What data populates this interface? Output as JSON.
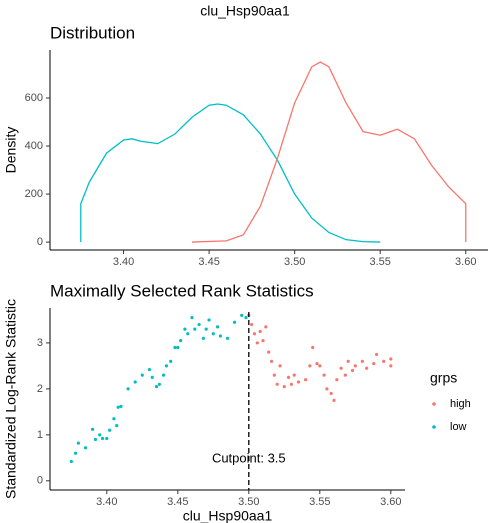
{
  "title": "clu_Hsp90aa1",
  "chart_data": [
    {
      "type": "line",
      "title": "Distribution",
      "ylabel": "Density",
      "xlim": [
        3.357,
        3.613
      ],
      "ylim": [
        -33,
        800
      ],
      "xticks": [
        {
          "value": 3.4,
          "label": "3.40"
        },
        {
          "value": 3.45,
          "label": "3.45"
        },
        {
          "value": 3.5,
          "label": "3.50"
        },
        {
          "value": 3.55,
          "label": "3.55"
        },
        {
          "value": 3.6,
          "label": "3.60"
        }
      ],
      "yticks": [
        0,
        200,
        400,
        600
      ],
      "series": [
        {
          "name": "low",
          "color": "#00BFC4",
          "x": [
            3.375,
            3.375,
            3.38,
            3.39,
            3.4,
            3.405,
            3.41,
            3.42,
            3.43,
            3.44,
            3.45,
            3.455,
            3.46,
            3.47,
            3.48,
            3.49,
            3.5,
            3.51,
            3.52,
            3.53,
            3.54,
            3.55
          ],
          "values": [
            0,
            160,
            250,
            370,
            425,
            430,
            420,
            410,
            450,
            520,
            570,
            575,
            570,
            530,
            450,
            340,
            200,
            100,
            40,
            10,
            2,
            0
          ]
        },
        {
          "name": "high",
          "color": "#F8766D",
          "x": [
            3.44,
            3.46,
            3.47,
            3.48,
            3.49,
            3.5,
            3.51,
            3.515,
            3.52,
            3.53,
            3.54,
            3.55,
            3.56,
            3.57,
            3.58,
            3.59,
            3.6,
            3.6
          ],
          "values": [
            0,
            5,
            30,
            150,
            350,
            580,
            730,
            750,
            730,
            580,
            460,
            445,
            470,
            430,
            320,
            230,
            160,
            0
          ]
        }
      ]
    },
    {
      "type": "scatter",
      "title": "Maximally Selected Rank Statistics",
      "xlabel": "clu_Hsp90aa1",
      "ylabel": "Standardized Log-Rank Statistic",
      "xlim": [
        3.36,
        3.61
      ],
      "ylim": [
        -0.2,
        3.76
      ],
      "xticks": [
        {
          "value": 3.4,
          "label": "3.40"
        },
        {
          "value": 3.45,
          "label": "3.45"
        },
        {
          "value": 3.5,
          "label": "3.50"
        },
        {
          "value": 3.55,
          "label": "3.55"
        },
        {
          "value": 3.6,
          "label": "3.60"
        }
      ],
      "yticks": [
        0,
        1,
        2,
        3
      ],
      "cutpoint": 3.5,
      "annotation": "Cutpoint: 3.5",
      "legend": true,
      "legend_title": "grps",
      "series": [
        {
          "name": "high",
          "color": "#F8766D",
          "x": [
            3.5,
            3.502,
            3.504,
            3.506,
            3.508,
            3.51,
            3.512,
            3.514,
            3.516,
            3.518,
            3.52,
            3.522,
            3.525,
            3.528,
            3.53,
            3.532,
            3.535,
            3.54,
            3.543,
            3.545,
            3.548,
            3.55,
            3.553,
            3.555,
            3.558,
            3.56,
            3.562,
            3.565,
            3.568,
            3.57,
            3.573,
            3.575,
            3.58,
            3.583,
            3.588,
            3.59,
            3.595,
            3.6,
            3.6
          ],
          "values": [
            3.6,
            3.4,
            3.2,
            3.0,
            3.25,
            3.05,
            3.35,
            2.8,
            2.6,
            2.3,
            2.1,
            2.5,
            2.05,
            2.25,
            2.1,
            2.3,
            2.15,
            2.2,
            2.5,
            2.9,
            2.55,
            2.5,
            2.3,
            2.0,
            1.9,
            1.75,
            2.2,
            2.45,
            2.3,
            2.6,
            2.4,
            2.5,
            2.6,
            2.45,
            2.55,
            2.75,
            2.6,
            2.5,
            2.65
          ]
        },
        {
          "name": "low",
          "color": "#00BFC4",
          "x": [
            3.375,
            3.378,
            3.38,
            3.385,
            3.39,
            3.392,
            3.395,
            3.397,
            3.4,
            3.402,
            3.405,
            3.407,
            3.408,
            3.41,
            3.415,
            3.42,
            3.425,
            3.43,
            3.432,
            3.435,
            3.437,
            3.44,
            3.442,
            3.445,
            3.448,
            3.45,
            3.452,
            3.455,
            3.457,
            3.46,
            3.462,
            3.465,
            3.468,
            3.47,
            3.472,
            3.475,
            3.478,
            3.48,
            3.485,
            3.49,
            3.495,
            3.498
          ],
          "values": [
            0.42,
            0.6,
            0.82,
            0.72,
            1.12,
            0.9,
            1.0,
            0.92,
            0.92,
            1.1,
            1.35,
            1.2,
            1.6,
            1.62,
            2.0,
            2.15,
            2.3,
            2.42,
            2.25,
            2.05,
            2.1,
            2.3,
            2.5,
            2.6,
            2.9,
            2.9,
            3.05,
            3.3,
            3.2,
            3.55,
            3.3,
            3.4,
            3.1,
            3.3,
            3.5,
            3.2,
            3.35,
            3.15,
            3.1,
            3.45,
            3.6,
            3.55
          ]
        }
      ]
    }
  ]
}
